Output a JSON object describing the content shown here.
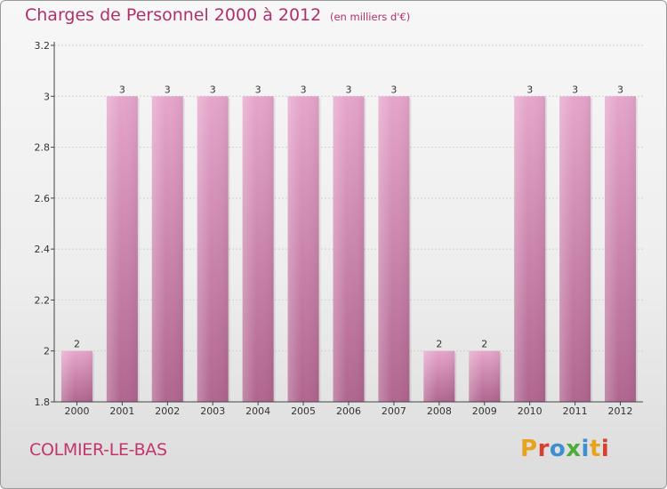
{
  "header": {
    "title": "Charges de Personnel 2000 à 2012",
    "subtitle": "(en milliers d'€)"
  },
  "footer": {
    "commune": "COLMIER-LE-BAS",
    "logo": "Proxiti",
    "logo_colors": [
      "#e8a21c",
      "#d9402b",
      "#3f8fd0",
      "#4cae3a",
      "#3f8fd0",
      "#e8a21c",
      "#d9402b"
    ]
  },
  "colors": {
    "title": "#b0306b",
    "bar_top": "#e6a5cb",
    "bar_bottom": "#b0658f",
    "axis": "#444444",
    "grid": "#cfcfcf"
  },
  "chart_data": {
    "type": "bar",
    "title": "Charges de Personnel 2000 à 2012",
    "subtitle": "(en milliers d'€)",
    "categories": [
      "2000",
      "2001",
      "2002",
      "2003",
      "2004",
      "2005",
      "2006",
      "2007",
      "2008",
      "2009",
      "2010",
      "2011",
      "2012"
    ],
    "values": [
      2,
      3,
      3,
      3,
      3,
      3,
      3,
      3,
      2,
      2,
      3,
      3,
      3
    ],
    "data_labels": [
      "2",
      "3",
      "3",
      "3",
      "3",
      "3",
      "3",
      "3",
      "2",
      "2",
      "3",
      "3",
      "3"
    ],
    "ylim": [
      1.8,
      3.2
    ],
    "yticks": [
      1.8,
      2,
      2.2,
      2.4,
      2.6,
      2.8,
      3,
      3.2
    ],
    "ytick_labels": [
      "1.8",
      "2",
      "2.2",
      "2.4",
      "2.6",
      "2.8",
      "3",
      "3.2"
    ],
    "xlabel": "",
    "ylabel": "",
    "grid": true
  }
}
